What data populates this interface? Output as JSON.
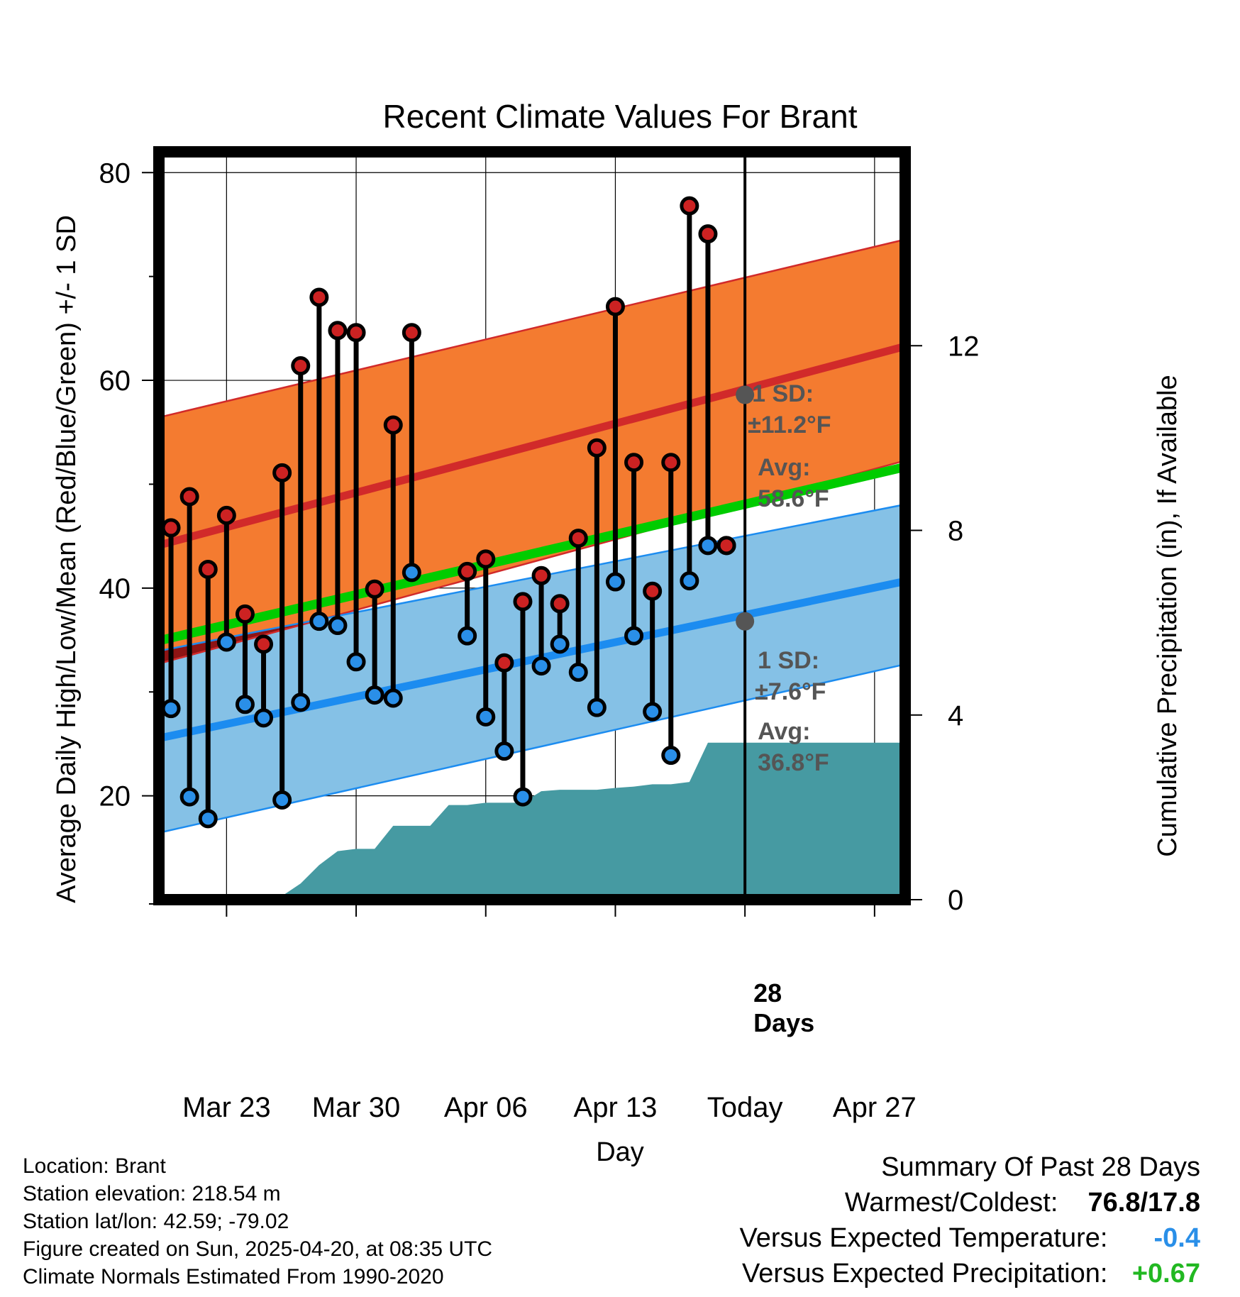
{
  "colors": {
    "high_band": "#F47B30",
    "high_line": "#D12A2A",
    "low_band": "#85C1E6",
    "low_line": "#1C8CF0",
    "mean_line": "#00CC00",
    "overlap_band": "#8E1414",
    "precip_fill": "#469AA2",
    "high_marker": "#CC2222",
    "low_marker": "#2A8FE8",
    "avg_marker": "#555555",
    "temp_anomaly": "#2A8FE8",
    "precip_anomaly": "#22B822"
  },
  "chart_data": {
    "type": "line",
    "title": "Recent Climate Values For Brant",
    "xlabel": "Day",
    "ylabel": "Average Daily High/Low/Mean (Red/Blue/Green) +/- 1 SD",
    "y2label": "Cumulative Precipitation (in), If Available",
    "ylim": [
      10,
      82
    ],
    "y2lim": [
      0,
      16.2
    ],
    "xlim": [
      -0.5,
      39.5
    ],
    "x_ticks": [
      {
        "x": 3,
        "label": "Mar 23"
      },
      {
        "x": 10,
        "label": "Mar 30"
      },
      {
        "x": 17,
        "label": "Apr 06"
      },
      {
        "x": 24,
        "label": "Apr 13"
      },
      {
        "x": 31,
        "label": "Today"
      },
      {
        "x": 38,
        "label": "Apr 27"
      }
    ],
    "y_ticks": [
      20,
      40,
      60,
      80
    ],
    "y_minor_ticks": [
      30,
      50,
      70
    ],
    "y2_ticks": [
      0,
      4,
      8,
      12
    ],
    "grid": true,
    "today_x": 31,
    "normals": {
      "x_range": [
        -0.5,
        39.5
      ],
      "high_mean": [
        44.2,
        63.2
      ],
      "high_upper": [
        56.5,
        73.5
      ],
      "high_lower": [
        32.8,
        52.2
      ],
      "low_mean": [
        25.6,
        40.6
      ],
      "low_upper": [
        34.0,
        48.0
      ],
      "low_lower": [
        16.5,
        32.6
      ],
      "daily_mean": [
        35.0,
        51.6
      ]
    },
    "daily": {
      "x": [
        0,
        1,
        2,
        3,
        4,
        5,
        6,
        7,
        8,
        9,
        10,
        11,
        12,
        13,
        16,
        17,
        18,
        19,
        20,
        21,
        22,
        23,
        24,
        25,
        26,
        27,
        28,
        29,
        30
      ],
      "high": [
        45.8,
        48.8,
        41.8,
        47.0,
        37.5,
        34.6,
        51.1,
        61.4,
        68.0,
        64.8,
        64.6,
        39.9,
        55.7,
        64.6,
        41.6,
        42.8,
        32.8,
        38.7,
        41.2,
        38.5,
        44.8,
        53.5,
        67.1,
        52.1,
        39.7,
        52.1,
        76.8,
        74.1,
        44.1
      ],
      "low": [
        28.4,
        19.9,
        17.8,
        34.8,
        28.8,
        27.5,
        19.6,
        29.0,
        36.8,
        36.4,
        32.9,
        29.7,
        29.4,
        41.5,
        35.4,
        27.6,
        24.3,
        19.9,
        32.5,
        34.6,
        31.9,
        28.5,
        40.6,
        35.4,
        28.1,
        23.9,
        40.7,
        44.1,
        44.1
      ]
    },
    "precip": {
      "x": [
        -0.5,
        3,
        4,
        5,
        6,
        7,
        8,
        9,
        10,
        11,
        12,
        13,
        14,
        15,
        16,
        17,
        18,
        19,
        20,
        21,
        22,
        23,
        24,
        25,
        26,
        27,
        28,
        29,
        30,
        31,
        39.5
      ],
      "y": [
        0,
        0,
        0.02,
        0.05,
        0.08,
        0.35,
        0.75,
        1.05,
        1.1,
        1.1,
        1.6,
        1.6,
        1.6,
        2.05,
        2.05,
        2.1,
        2.1,
        2.1,
        2.35,
        2.38,
        2.38,
        2.38,
        2.42,
        2.45,
        2.5,
        2.5,
        2.55,
        3.4,
        3.4,
        3.4,
        3.4
      ]
    },
    "annotations": {
      "high_sd_label": "1 SD:",
      "high_sd_value": "±11.2°F",
      "high_avg_label": "Avg:",
      "high_avg_value": "58.6°F",
      "high_avg": 58.6,
      "low_sd_label": "1 SD:",
      "low_sd_value": "±7.6°F",
      "low_avg_label": "Avg:",
      "low_avg_value": "36.8°F",
      "low_avg": 36.8,
      "days_count": "28",
      "days_word": "Days"
    }
  },
  "metadata": {
    "location": "Location: Brant",
    "elevation": "Station elevation: 218.54 m",
    "latlon": "Station lat/lon: 42.59; -79.02",
    "created": "Figure created on Sun, 2025-04-20, at 08:35 UTC",
    "normals": "Climate Normals Estimated From 1990-2020"
  },
  "summary": {
    "heading": "Summary Of Past 28 Days",
    "warmest_label": "Warmest/Coldest:",
    "warmest_value": "76.8/17.8",
    "temp_label": "Versus Expected Temperature:",
    "temp_value": "-0.4",
    "precip_label": "Versus Expected Precipitation:",
    "precip_value": "+0.67"
  }
}
